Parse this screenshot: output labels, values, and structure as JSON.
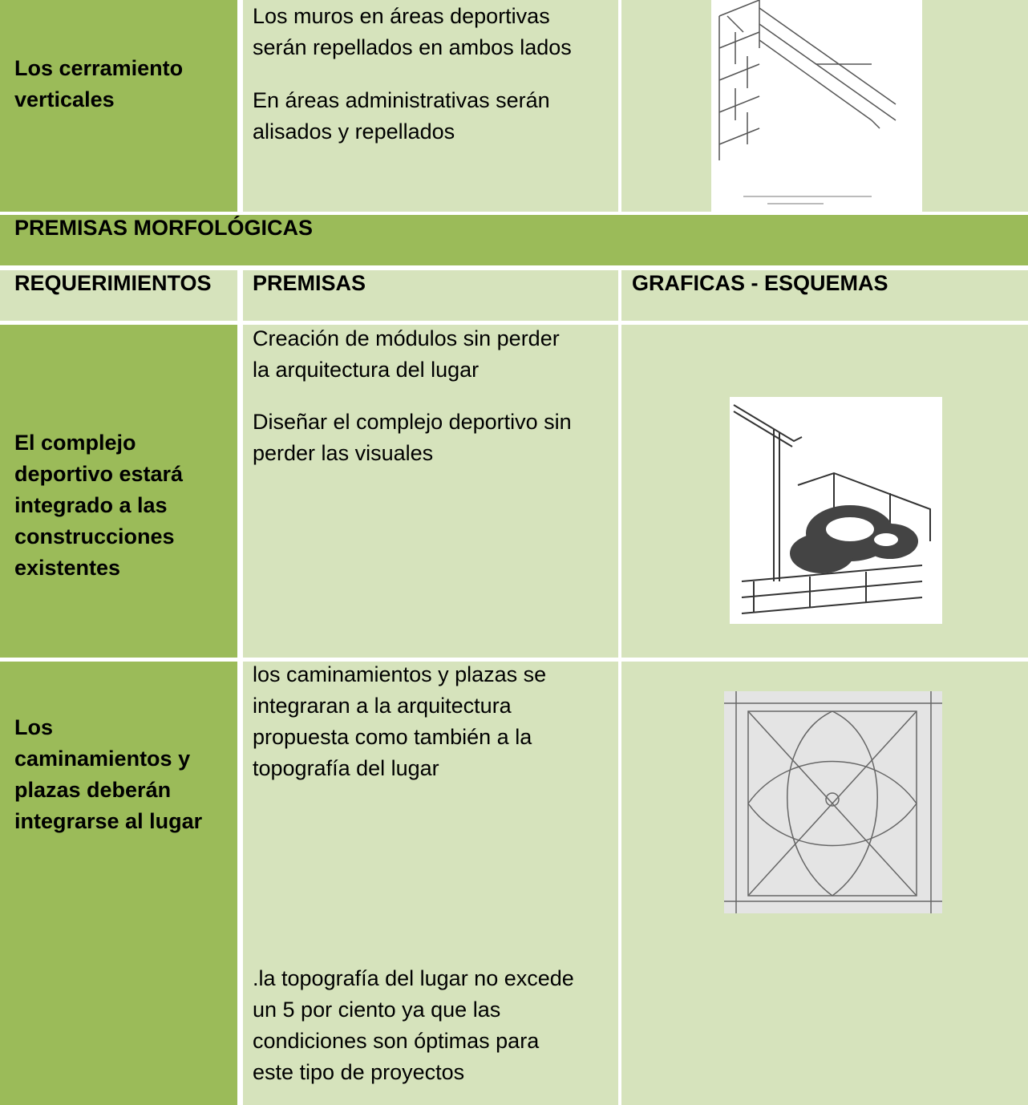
{
  "table": {
    "rows": [
      {
        "requirement": [
          "Los cerramiento",
          "verticales"
        ],
        "premises": [
          [
            "Los muros en áreas deportivas",
            "serán repellados en ambos lados"
          ],
          [
            "En áreas administrativas serán",
            "alisados y repellados"
          ]
        ]
      },
      {
        "section": "PREMISAS MORFOLÓGICAS"
      },
      {
        "headers": [
          "REQUERIMIENTOS",
          "PREMISAS",
          "GRAFICAS - ESQUEMAS"
        ]
      },
      {
        "requirement": [
          "El complejo",
          "deportivo estará",
          "integrado a las",
          "construcciones",
          "existentes"
        ],
        "premises": [
          [
            "Creación de módulos sin perder",
            "la arquitectura del lugar"
          ],
          [
            "Diseñar el complejo deportivo sin",
            "perder las visuales"
          ]
        ]
      },
      {
        "requirement": [
          "Los",
          "caminamientos y",
          "plazas deberán",
          "integrarse al lugar"
        ],
        "premises": [
          [
            "los caminamientos y plazas se",
            "integraran a la arquitectura",
            "propuesta como también a la",
            "topografía del lugar"
          ],
          [
            ".la topografía del lugar no excede",
            "un 5 por ciento ya que las",
            "condiciones son óptimas para",
            "este tipo de proyectos"
          ]
        ]
      }
    ]
  }
}
